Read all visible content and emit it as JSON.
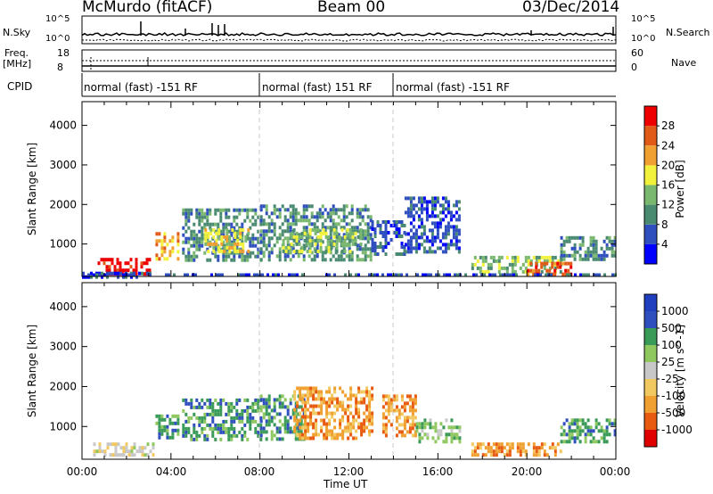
{
  "header": {
    "station": "McMurdo (fitACF)",
    "beam": "Beam 00",
    "date": "03/Dec/2014"
  },
  "noise_panel": {
    "left_label": "N.Sky",
    "right_label": "N.Search",
    "left_ticks": [
      "10^5",
      "10^0"
    ],
    "right_ticks": [
      "10^5",
      "10^0"
    ]
  },
  "freq_panel": {
    "left_label_1": "Freq.",
    "left_label_2": "[MHz]",
    "right_label": "Nave",
    "left_ticks": [
      "18",
      "8"
    ],
    "right_ticks": [
      "60",
      "0"
    ]
  },
  "cpid": {
    "label": "CPID",
    "segments": [
      {
        "text": "normal (fast) -151 RF",
        "start": "00:00",
        "end": "08:00"
      },
      {
        "text": "normal (fast) 151 RF",
        "start": "08:00",
        "end": "14:00"
      },
      {
        "text": "normal (fast) -151 RF",
        "start": "14:00",
        "end": "24:00"
      }
    ]
  },
  "x_axis": {
    "title": "Time UT",
    "ticks": [
      "00:00",
      "04:00",
      "08:00",
      "12:00",
      "16:00",
      "20:00",
      "00:00"
    ]
  },
  "colors": {
    "power": [
      "#0000ff",
      "#2f4fbf",
      "#4a8a70",
      "#7ab870",
      "#f2f23c",
      "#f0a030",
      "#e25a18",
      "#ee0000"
    ],
    "velocity": [
      "#e00000",
      "#e85a10",
      "#f0a030",
      "#f2c860",
      "#c8c8c8",
      "#90c860",
      "#3a9a58",
      "#2f4fbf",
      "#1f3fbf"
    ],
    "gate_line": "#c8c8c8"
  },
  "chart_data": [
    {
      "type": "heatmap",
      "panel": "power",
      "title": "",
      "xlabel": "Time UT",
      "ylabel": "Slant Range [km]",
      "xlim": [
        0,
        24
      ],
      "ylim": [
        180,
        4600
      ],
      "yticks": [
        1000,
        2000,
        3000,
        4000
      ],
      "colorbar": {
        "label": "Power [dB]",
        "ticks": [
          "4",
          "8",
          "12",
          "16",
          "20",
          "24",
          "28"
        ],
        "bins": [
          [
            0,
            4
          ],
          [
            4,
            8
          ],
          [
            8,
            12
          ],
          [
            12,
            16
          ],
          [
            16,
            20
          ],
          [
            20,
            24
          ],
          [
            24,
            28
          ],
          [
            28,
            32
          ]
        ]
      },
      "echo_regions": [
        {
          "t0": 0.7,
          "t1": 3.0,
          "r0": 280,
          "r1": 650,
          "level": 7
        },
        {
          "t0": 0.0,
          "t1": 3.2,
          "r0": 200,
          "r1": 300,
          "level": 1
        },
        {
          "t0": 3.3,
          "t1": 4.3,
          "r0": 600,
          "r1": 1300,
          "level": 5
        },
        {
          "t0": 4.5,
          "t1": 8.0,
          "r0": 600,
          "r1": 1900,
          "level": 2
        },
        {
          "t0": 5.5,
          "t1": 7.5,
          "r0": 800,
          "r1": 1400,
          "level": 4
        },
        {
          "t0": 8.0,
          "t1": 13.0,
          "r0": 600,
          "r1": 2000,
          "level": 2
        },
        {
          "t0": 9.0,
          "t1": 12.5,
          "r0": 800,
          "r1": 1400,
          "level": 3
        },
        {
          "t0": 13.0,
          "t1": 14.5,
          "r0": 700,
          "r1": 1600,
          "level": 1
        },
        {
          "t0": 14.5,
          "t1": 17.0,
          "r0": 800,
          "r1": 2200,
          "level": 1
        },
        {
          "t0": 17.5,
          "t1": 21.5,
          "r0": 300,
          "r1": 700,
          "level": 3
        },
        {
          "t0": 20.0,
          "t1": 22.0,
          "r0": 250,
          "r1": 550,
          "level": 6
        },
        {
          "t0": 21.5,
          "t1": 24.0,
          "r0": 600,
          "r1": 1200,
          "level": 2
        },
        {
          "t0": 0.0,
          "t1": 24.0,
          "r0": 180,
          "r1": 260,
          "level": 1
        }
      ]
    },
    {
      "type": "heatmap",
      "panel": "velocity",
      "title": "",
      "xlabel": "Time UT",
      "ylabel": "Slant Range [km]",
      "xlim": [
        0,
        24
      ],
      "ylim": [
        180,
        4600
      ],
      "yticks": [
        1000,
        2000,
        3000,
        4000
      ],
      "colorbar": {
        "label": "Velocity [m s^-1]",
        "ticks": [
          "-1000",
          "-500",
          "-100",
          "-25",
          "25",
          "100",
          "500",
          "1000"
        ],
        "bins": [
          [
            -1250,
            -1000
          ],
          [
            -1000,
            -500
          ],
          [
            -500,
            -100
          ],
          [
            -100,
            -25
          ],
          [
            -25,
            25
          ],
          [
            25,
            100
          ],
          [
            100,
            500
          ],
          [
            500,
            1000
          ],
          [
            1000,
            1250
          ]
        ]
      },
      "echo_regions": [
        {
          "t0": 0.5,
          "t1": 3.2,
          "r0": 250,
          "r1": 600,
          "level": 4
        },
        {
          "t0": 3.3,
          "t1": 4.3,
          "r0": 700,
          "r1": 1300,
          "level": 6
        },
        {
          "t0": 4.5,
          "t1": 8.0,
          "r0": 700,
          "r1": 1700,
          "level": 6
        },
        {
          "t0": 8.0,
          "t1": 10.0,
          "r0": 700,
          "r1": 1800,
          "level": 6
        },
        {
          "t0": 9.5,
          "t1": 13.0,
          "r0": 700,
          "r1": 2000,
          "level": 2
        },
        {
          "t0": 13.5,
          "t1": 15.0,
          "r0": 800,
          "r1": 1800,
          "level": 2
        },
        {
          "t0": 15.0,
          "t1": 17.0,
          "r0": 600,
          "r1": 1200,
          "level": 5
        },
        {
          "t0": 17.5,
          "t1": 21.5,
          "r0": 250,
          "r1": 600,
          "level": 2
        },
        {
          "t0": 21.5,
          "t1": 24.0,
          "r0": 600,
          "r1": 1200,
          "level": 6
        }
      ]
    }
  ]
}
